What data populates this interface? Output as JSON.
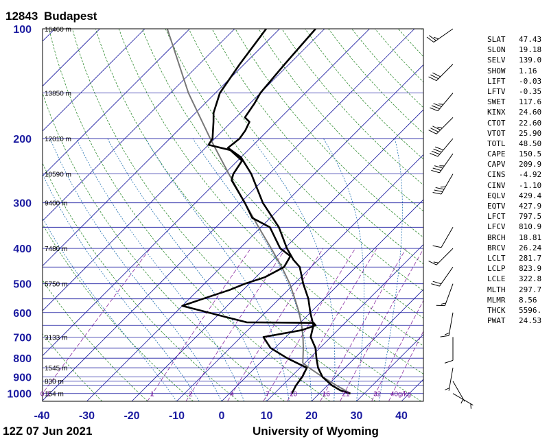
{
  "header": {
    "station_id": "12843",
    "station_name": "Budapest"
  },
  "footer": {
    "time": "12Z 07 Jun 2021",
    "source": "University of Wyoming"
  },
  "indices": [
    {
      "key": "SLAT",
      "value": "47.43"
    },
    {
      "key": "SLON",
      "value": "19.18"
    },
    {
      "key": "SELV",
      "value": "139.0"
    },
    {
      "key": "SHOW",
      "value": "1.16"
    },
    {
      "key": "LIFT",
      "value": "-0.03"
    },
    {
      "key": "LFTV",
      "value": "-0.35"
    },
    {
      "key": "SWET",
      "value": "117.6"
    },
    {
      "key": "KINX",
      "value": "24.60"
    },
    {
      "key": "CTOT",
      "value": "22.60"
    },
    {
      "key": "VTOT",
      "value": "25.90"
    },
    {
      "key": "TOTL",
      "value": "48.50"
    },
    {
      "key": "CAPE",
      "value": "150.5"
    },
    {
      "key": "CAPV",
      "value": "209.9"
    },
    {
      "key": "CINS",
      "value": "-4.92"
    },
    {
      "key": "CINV",
      "value": "-1.10"
    },
    {
      "key": "EQLV",
      "value": "429.4"
    },
    {
      "key": "EQTV",
      "value": "427.9"
    },
    {
      "key": "LFCT",
      "value": "797.5"
    },
    {
      "key": "LFCV",
      "value": "810.9"
    },
    {
      "key": "BRCH",
      "value": "18.81"
    },
    {
      "key": "BRCV",
      "value": "26.24"
    },
    {
      "key": "LCLT",
      "value": "281.7"
    },
    {
      "key": "LCLP",
      "value": "823.9"
    },
    {
      "key": "LCLE",
      "value": "322.8"
    },
    {
      "key": "MLTH",
      "value": "297.7"
    },
    {
      "key": "MLMR",
      "value": "8.56"
    },
    {
      "key": "THCK",
      "value": "5596."
    },
    {
      "key": "PWAT",
      "value": "24.53"
    }
  ],
  "colors": {
    "isobar": "#1a1aa0",
    "isotherm": "#1a1aa0",
    "dry_adiabat": "#2e8b2e",
    "moist_adiabat": "#1f6fb0",
    "mixing_ratio": "#8a2aa0",
    "sounding": "#000000",
    "parcel": "#777777"
  },
  "chart_data": {
    "type": "skew-t log-p",
    "xlim": [
      -40,
      45
    ],
    "ylim": [
      1050,
      100
    ],
    "pressure_ticks": [
      100,
      200,
      300,
      400,
      500,
      600,
      700,
      800,
      900,
      1000
    ],
    "pressure_tick_labels": [
      "100",
      "200",
      "300",
      "400",
      "500",
      "600",
      "700",
      "800",
      "900",
      "1000"
    ],
    "temperature_ticks": [
      -40,
      -30,
      -20,
      -10,
      0,
      10,
      20,
      30,
      40
    ],
    "temperature_tick_labels": [
      "-40",
      "-30",
      "-20",
      "-10",
      "0",
      "10",
      "20",
      "30",
      "40"
    ],
    "height_labels": [
      {
        "p": 100,
        "label": "16460 m"
      },
      {
        "p": 150,
        "label": "13850 m"
      },
      {
        "p": 200,
        "label": "12010 m"
      },
      {
        "p": 250,
        "label": "10590 m"
      },
      {
        "p": 300,
        "label": "9400 m"
      },
      {
        "p": 400,
        "label": "7480 m"
      },
      {
        "p": 500,
        "label": "5750 m"
      },
      {
        "p": 700,
        "label": "3133 m"
      },
      {
        "p": 850,
        "label": "1545 m"
      },
      {
        "p": 925,
        "label": "830 m"
      },
      {
        "p": 1000,
        "label": "154 m"
      }
    ],
    "mixing_ratio_labels": [
      "0.1",
      "1",
      "2",
      "4",
      "7",
      "10",
      "16",
      "21",
      "32",
      "40g/kg"
    ],
    "mixing_ratio_values": [
      0.1,
      1,
      2,
      4,
      7,
      10,
      16,
      21,
      32,
      40
    ],
    "temperature_profile": [
      {
        "p": 1000,
        "t": 26.9
      },
      {
        "p": 980,
        "t": 24.0
      },
      {
        "p": 950,
        "t": 21.0
      },
      {
        "p": 925,
        "t": 19.0
      },
      {
        "p": 900,
        "t": 17.0
      },
      {
        "p": 850,
        "t": 14.0
      },
      {
        "p": 800,
        "t": 11.5
      },
      {
        "p": 750,
        "t": 9.0
      },
      {
        "p": 700,
        "t": 5.5
      },
      {
        "p": 650,
        "t": 3.5
      },
      {
        "p": 600,
        "t": 0.0
      },
      {
        "p": 550,
        "t": -3.5
      },
      {
        "p": 500,
        "t": -8.0
      },
      {
        "p": 450,
        "t": -12.5
      },
      {
        "p": 430,
        "t": -15.5
      },
      {
        "p": 400,
        "t": -19.5
      },
      {
        "p": 350,
        "t": -26.0
      },
      {
        "p": 300,
        "t": -35.0
      },
      {
        "p": 250,
        "t": -44.0
      },
      {
        "p": 225,
        "t": -50.0
      },
      {
        "p": 212,
        "t": -55.0
      },
      {
        "p": 200,
        "t": -54.5
      },
      {
        "p": 190,
        "t": -55.0
      },
      {
        "p": 180,
        "t": -56.0
      },
      {
        "p": 175,
        "t": -58.0
      },
      {
        "p": 160,
        "t": -59.0
      },
      {
        "p": 150,
        "t": -60.0
      },
      {
        "p": 125,
        "t": -61.0
      },
      {
        "p": 100,
        "t": -62.0
      }
    ],
    "dewpoint_profile": [
      {
        "p": 1000,
        "t": 13.9
      },
      {
        "p": 950,
        "t": 13.0
      },
      {
        "p": 900,
        "t": 12.5
      },
      {
        "p": 850,
        "t": 11.5
      },
      {
        "p": 800,
        "t": 5.0
      },
      {
        "p": 750,
        "t": -1.0
      },
      {
        "p": 700,
        "t": -5.0
      },
      {
        "p": 670,
        "t": 2.0
      },
      {
        "p": 650,
        "t": 4.0
      },
      {
        "p": 640,
        "t": 3.0
      },
      {
        "p": 638,
        "t": -12.0
      },
      {
        "p": 620,
        "t": -17.0
      },
      {
        "p": 575,
        "t": -30.0
      },
      {
        "p": 550,
        "t": -27.0
      },
      {
        "p": 520,
        "t": -23.0
      },
      {
        "p": 500,
        "t": -21.0
      },
      {
        "p": 480,
        "t": -18.0
      },
      {
        "p": 450,
        "t": -16.0
      },
      {
        "p": 420,
        "t": -17.0
      },
      {
        "p": 400,
        "t": -21.0
      },
      {
        "p": 350,
        "t": -28.0
      },
      {
        "p": 330,
        "t": -34.0
      },
      {
        "p": 300,
        "t": -39.0
      },
      {
        "p": 260,
        "t": -47.0
      },
      {
        "p": 250,
        "t": -48.0
      },
      {
        "p": 230,
        "t": -49.0
      },
      {
        "p": 215,
        "t": -54.0
      },
      {
        "p": 208,
        "t": -60.0
      },
      {
        "p": 200,
        "t": -60.5
      },
      {
        "p": 180,
        "t": -64.0
      },
      {
        "p": 170,
        "t": -66.0
      },
      {
        "p": 150,
        "t": -69.0
      },
      {
        "p": 125,
        "t": -71.0
      },
      {
        "p": 100,
        "t": -73.0
      }
    ],
    "parcel_profile": [
      {
        "p": 1000,
        "t": 27.0
      },
      {
        "p": 950,
        "t": 22.0
      },
      {
        "p": 900,
        "t": 17.0
      },
      {
        "p": 850,
        "t": 12.0
      },
      {
        "p": 824,
        "t": 9.5
      },
      {
        "p": 800,
        "t": 8.5
      },
      {
        "p": 750,
        "t": 6.3
      },
      {
        "p": 700,
        "t": 3.8
      },
      {
        "p": 650,
        "t": 0.9
      },
      {
        "p": 600,
        "t": -2.5
      },
      {
        "p": 550,
        "t": -6.5
      },
      {
        "p": 500,
        "t": -11.0
      },
      {
        "p": 450,
        "t": -16.5
      },
      {
        "p": 400,
        "t": -23.0
      },
      {
        "p": 350,
        "t": -30.5
      },
      {
        "p": 300,
        "t": -39.0
      },
      {
        "p": 250,
        "t": -49.0
      },
      {
        "p": 200,
        "t": -61.0
      },
      {
        "p": 150,
        "t": -76.0
      },
      {
        "p": 100,
        "t": -95.0
      }
    ],
    "wind_barbs": [
      {
        "p": 1000,
        "dir": 120,
        "spd": 5
      },
      {
        "p": 925,
        "dir": 150,
        "spd": 5
      },
      {
        "p": 850,
        "dir": 190,
        "spd": 5
      },
      {
        "p": 700,
        "dir": 180,
        "spd": 10
      },
      {
        "p": 600,
        "dir": 190,
        "spd": 15
      },
      {
        "p": 500,
        "dir": 200,
        "spd": 15
      },
      {
        "p": 450,
        "dir": 215,
        "spd": 20
      },
      {
        "p": 400,
        "dir": 225,
        "spd": 15
      },
      {
        "p": 350,
        "dir": 210,
        "spd": 10
      },
      {
        "p": 250,
        "dir": 210,
        "spd": 35
      },
      {
        "p": 220,
        "dir": 215,
        "spd": 35
      },
      {
        "p": 200,
        "dir": 220,
        "spd": 40
      },
      {
        "p": 175,
        "dir": 225,
        "spd": 35
      },
      {
        "p": 150,
        "dir": 220,
        "spd": 35
      },
      {
        "p": 125,
        "dir": 225,
        "spd": 30
      },
      {
        "p": 100,
        "dir": 235,
        "spd": 25
      }
    ]
  }
}
